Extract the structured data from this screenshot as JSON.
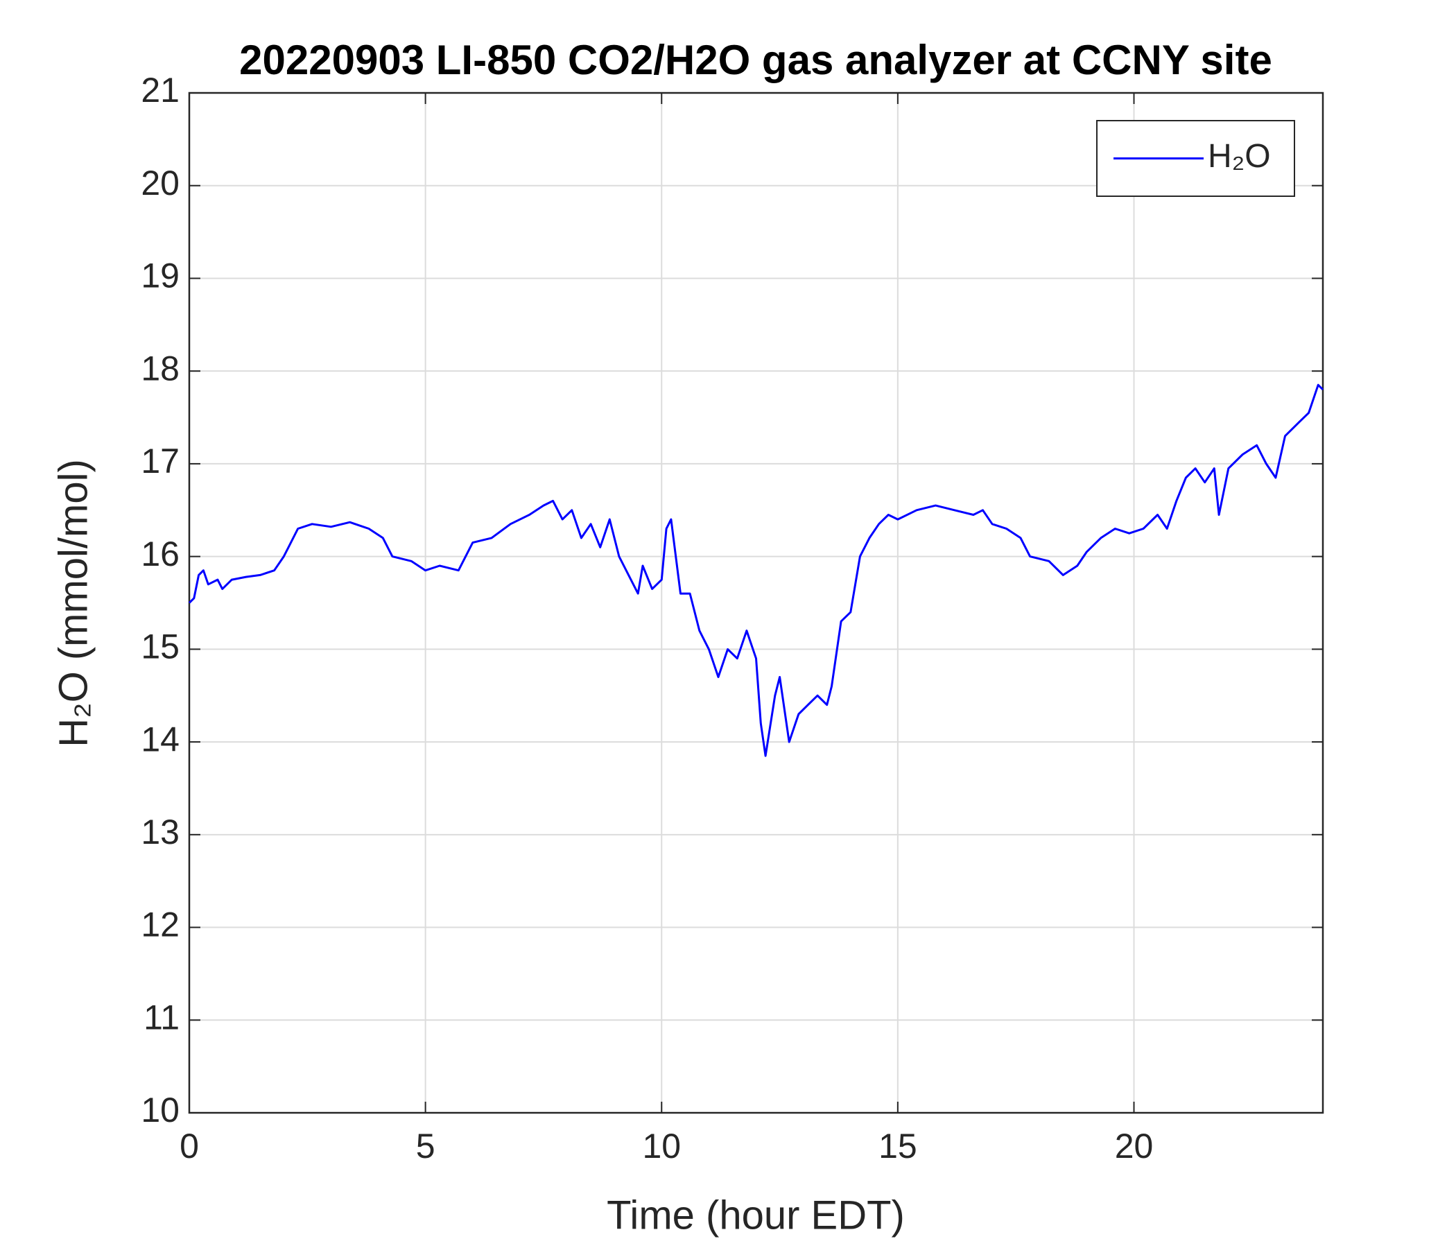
{
  "chart_data": {
    "type": "line",
    "title": "20220903 LI-850 CO2/H2O gas analyzer at CCNY site",
    "xlabel": "Time (hour EDT)",
    "ylabel": "H₂O (mmol/mol)",
    "x": [
      0,
      0.1,
      0.2,
      0.3,
      0.4,
      0.6,
      0.7,
      0.9,
      1.2,
      1.5,
      1.8,
      2.0,
      2.1,
      2.3,
      2.6,
      3.0,
      3.4,
      3.8,
      4.1,
      4.3,
      4.7,
      5.0,
      5.3,
      5.7,
      6.0,
      6.4,
      6.8,
      7.2,
      7.5,
      7.7,
      7.9,
      8.1,
      8.3,
      8.5,
      8.7,
      8.9,
      9.1,
      9.3,
      9.5,
      9.6,
      9.8,
      10.0,
      10.1,
      10.2,
      10.3,
      10.4,
      10.6,
      10.8,
      11.0,
      11.2,
      11.4,
      11.6,
      11.8,
      12.0,
      12.1,
      12.2,
      12.4,
      12.5,
      12.7,
      12.9,
      13.1,
      13.3,
      13.5,
      13.6,
      13.8,
      14.0,
      14.2,
      14.4,
      14.6,
      14.8,
      15.0,
      15.4,
      15.8,
      16.2,
      16.6,
      16.8,
      17.0,
      17.3,
      17.6,
      17.8,
      18.2,
      18.5,
      18.8,
      19.0,
      19.3,
      19.6,
      19.9,
      20.2,
      20.5,
      20.7,
      20.9,
      21.1,
      21.3,
      21.5,
      21.7,
      21.8,
      22.0,
      22.3,
      22.6,
      22.8,
      23.0,
      23.2,
      23.5,
      23.7,
      23.9,
      24.0
    ],
    "series": [
      {
        "name": "H₂O",
        "color": "#0000ff",
        "values": [
          15.5,
          15.55,
          15.8,
          15.85,
          15.7,
          15.75,
          15.65,
          15.75,
          15.78,
          15.8,
          15.85,
          16.0,
          16.1,
          16.3,
          16.35,
          16.32,
          16.37,
          16.3,
          16.2,
          16.0,
          15.95,
          15.85,
          15.9,
          15.85,
          16.15,
          16.2,
          16.35,
          16.45,
          16.55,
          16.6,
          16.4,
          16.5,
          16.2,
          16.35,
          16.1,
          16.4,
          16.0,
          15.8,
          15.6,
          15.9,
          15.65,
          15.75,
          16.3,
          16.4,
          16.0,
          15.6,
          15.6,
          15.2,
          15.0,
          14.7,
          15.0,
          14.9,
          15.2,
          14.9,
          14.2,
          13.85,
          14.5,
          14.7,
          14.0,
          14.3,
          14.4,
          14.5,
          14.4,
          14.6,
          15.3,
          15.4,
          16.0,
          16.2,
          16.35,
          16.45,
          16.4,
          16.5,
          16.55,
          16.5,
          16.45,
          16.5,
          16.35,
          16.3,
          16.2,
          16.0,
          15.95,
          15.8,
          15.9,
          16.05,
          16.2,
          16.3,
          16.25,
          16.3,
          16.45,
          16.3,
          16.6,
          16.85,
          16.95,
          16.8,
          16.95,
          16.45,
          16.95,
          17.1,
          17.2,
          17.0,
          16.85,
          17.3,
          17.45,
          17.55,
          17.85,
          17.8
        ]
      }
    ],
    "xlim": [
      0,
      24
    ],
    "xticks": [
      0,
      5,
      10,
      15,
      20
    ],
    "ylim": [
      10,
      21
    ],
    "yticks": [
      10,
      11,
      12,
      13,
      14,
      15,
      16,
      17,
      18,
      19,
      20,
      21
    ],
    "grid": true,
    "legend": "upper right"
  }
}
